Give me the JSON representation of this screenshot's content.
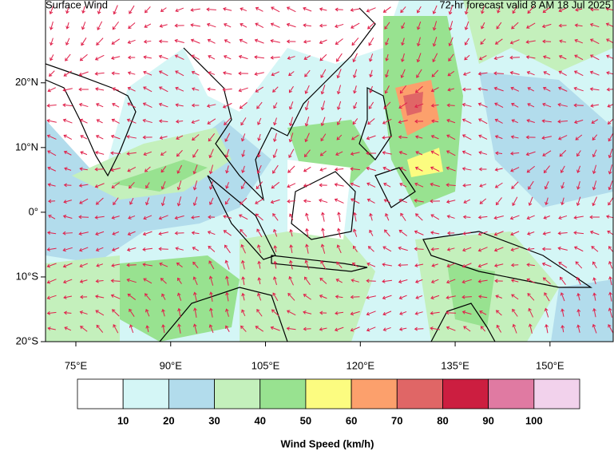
{
  "chart_data": {
    "type": "map",
    "title": "Surface Wind",
    "subtitle": "72-hr forecast valid 8 AM 18 Jul 2025",
    "xlim": [
      70.2,
      160
    ],
    "ylim": [
      -20,
      32.8
    ],
    "xticks": [
      {
        "value": 75,
        "label": "75°E"
      },
      {
        "value": 90,
        "label": "90°E"
      },
      {
        "value": 105,
        "label": "105°E"
      },
      {
        "value": 120,
        "label": "120°E"
      },
      {
        "value": 135,
        "label": "135°E"
      },
      {
        "value": 150,
        "label": "150°E"
      }
    ],
    "yticks": [
      {
        "value": 20,
        "label": "20°N"
      },
      {
        "value": 10,
        "label": "10°N"
      },
      {
        "value": 0,
        "label": "0°"
      },
      {
        "value": -10,
        "label": "10°S"
      },
      {
        "value": -20,
        "label": "20°S"
      }
    ],
    "colorbar": {
      "title": "Wind Speed (km/h)",
      "levels": [
        10,
        20,
        30,
        40,
        50,
        60,
        70,
        80,
        90,
        100
      ],
      "colors": [
        "#ffffff",
        "#d4f6f6",
        "#b2dcec",
        "#c4f0bc",
        "#98e290",
        "#fcfc80",
        "#fca06c",
        "#e06666",
        "#cc1e40",
        "#e07aa2",
        "#f2d2ec"
      ]
    },
    "arrow_color": "#e0204a"
  }
}
